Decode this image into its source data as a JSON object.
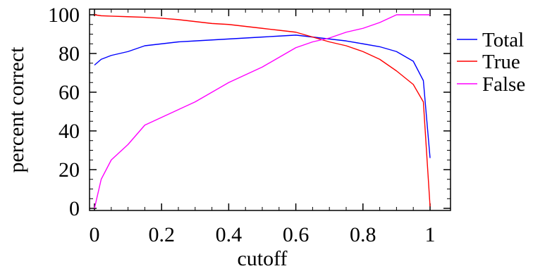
{
  "chart_data": {
    "type": "line",
    "title": "",
    "xlabel": "cutoff",
    "ylabel": "percent correct",
    "xlim": [
      0,
      1
    ],
    "ylim": [
      0,
      100
    ],
    "x_ticks": [
      0,
      0.2,
      0.4,
      0.6,
      0.8,
      1
    ],
    "x_tick_labels": [
      "0",
      "0.2",
      "0.4",
      "0.6",
      "0.8",
      "1"
    ],
    "y_ticks": [
      0,
      20,
      40,
      60,
      80,
      100
    ],
    "y_tick_labels": [
      "0",
      "20",
      "40",
      "60",
      "80",
      "100"
    ],
    "grid": false,
    "legend_position": "right",
    "series": [
      {
        "name": "Total",
        "color": "#0000ff",
        "x": [
          0,
          0.02,
          0.05,
          0.1,
          0.15,
          0.2,
          0.25,
          0.3,
          0.35,
          0.4,
          0.45,
          0.5,
          0.55,
          0.6,
          0.65,
          0.7,
          0.75,
          0.8,
          0.85,
          0.9,
          0.95,
          0.98,
          1.0
        ],
        "y": [
          74,
          77,
          79,
          81,
          84,
          85,
          86,
          86.5,
          87,
          87.5,
          88,
          88.5,
          89,
          89.5,
          88.5,
          87.5,
          86.5,
          85,
          83.5,
          81,
          76,
          66,
          26
        ]
      },
      {
        "name": "True",
        "color": "#ff0000",
        "x": [
          0,
          0.02,
          0.05,
          0.1,
          0.15,
          0.2,
          0.25,
          0.3,
          0.35,
          0.4,
          0.45,
          0.5,
          0.55,
          0.6,
          0.65,
          0.7,
          0.75,
          0.8,
          0.85,
          0.9,
          0.95,
          0.98,
          1.0
        ],
        "y": [
          100,
          99.5,
          99.3,
          99,
          98.7,
          98.2,
          97.5,
          96.5,
          95.5,
          95,
          94,
          93,
          92,
          91,
          88.5,
          86,
          84,
          81,
          77,
          71,
          64,
          55,
          1
        ]
      },
      {
        "name": "False",
        "color": "#ff00ff",
        "x": [
          0,
          0.02,
          0.05,
          0.1,
          0.15,
          0.2,
          0.25,
          0.3,
          0.35,
          0.4,
          0.45,
          0.5,
          0.55,
          0.6,
          0.65,
          0.7,
          0.75,
          0.8,
          0.85,
          0.9,
          0.95,
          1.0
        ],
        "y": [
          0,
          15,
          25,
          33,
          43,
          47,
          51,
          55,
          60,
          65,
          69,
          73,
          78,
          83,
          86,
          88,
          91,
          93,
          96,
          100,
          100,
          100
        ]
      }
    ]
  }
}
